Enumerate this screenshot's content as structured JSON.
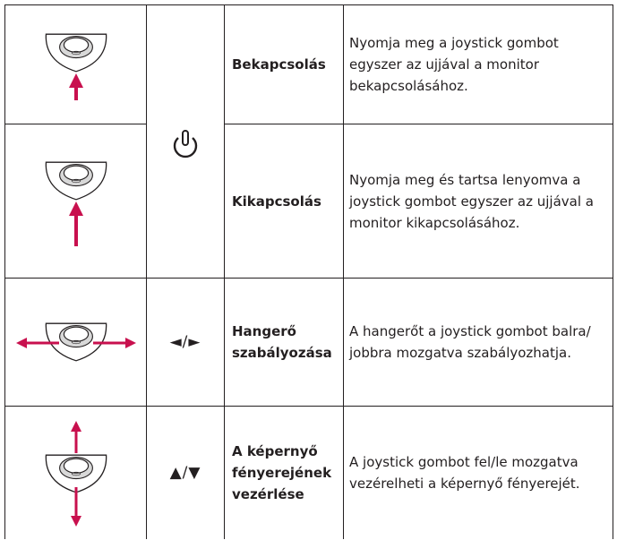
{
  "rows": [
    {
      "function": "Bekapcsolás",
      "description": "Nyomja meg a joystick gombot egyszer az ujjával a monitor bekapcsolásához."
    },
    {
      "function": "Kikapcsolás",
      "description": "Nyomja meg és tartsa lenyomva a joystick gombot egyszer az ujjával a monitor kikapcsolásához."
    },
    {
      "symbol": "◄/►",
      "function": "Hangerő szabályozása",
      "description": "A hangerőt a joystick gombot balra/ jobbra mozgatva szabályozhatja."
    },
    {
      "symbol": "▲/▼",
      "function": "A képernyő fényerejének vezérlése",
      "description": "A joystick gombot fel/le mozgatva vezérelheti a képernyő fényerejét."
    }
  ]
}
